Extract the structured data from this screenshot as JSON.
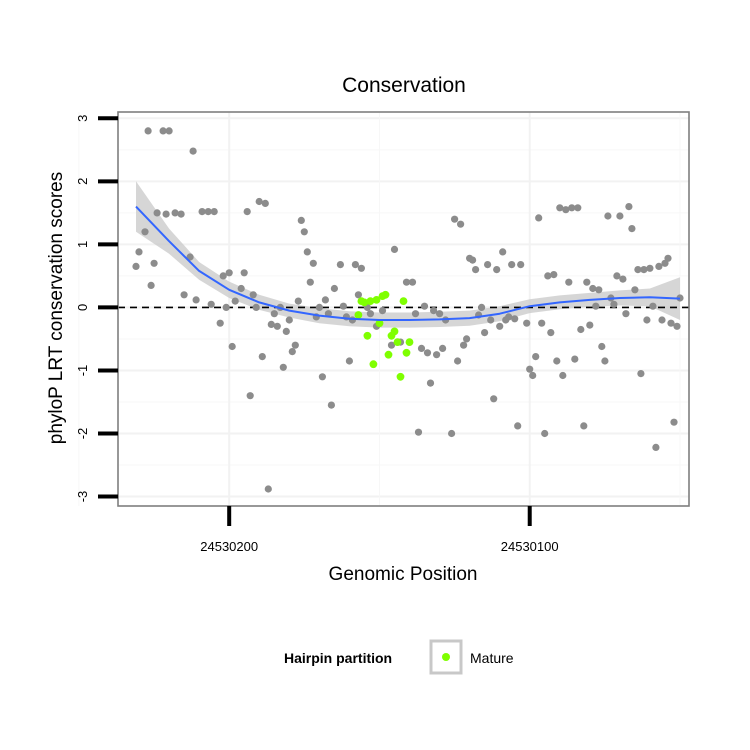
{
  "chart_data": {
    "type": "scatter",
    "title": "Conservation",
    "xlabel": "Genomic Position",
    "ylabel": "phyloP LRT conservation scores",
    "xlim": [
      24530237,
      24530047
    ],
    "ylim": [
      -3.15,
      3.1
    ],
    "x_reversed": true,
    "x_ticks": [
      24530200,
      24530100
    ],
    "x_tick_labels": [
      "24530200",
      "24530100"
    ],
    "y_ticks": [
      -3,
      -2,
      -1,
      0,
      1,
      2,
      3
    ],
    "y_tick_labels": [
      "-3",
      "-2",
      "-1",
      "0",
      "1",
      "2",
      "3"
    ],
    "grid": true,
    "reference_line": {
      "y": 0,
      "style": "dashed",
      "color": "#000000"
    },
    "legend": {
      "title": "Hairpin partition",
      "placement": "bottom",
      "entries": [
        {
          "label": "Mature",
          "color": "#7fff00"
        }
      ]
    },
    "colors": {
      "background_points": "#8c8c8c",
      "mature_points": "#7fff00",
      "smooth_line": "#3366ff",
      "confidence_band": "#c8c8c8"
    },
    "background_points": [
      [
        24530231,
        0.65
      ],
      [
        24530230,
        0.88
      ],
      [
        24530228,
        1.2
      ],
      [
        24530227,
        2.8
      ],
      [
        24530226,
        0.35
      ],
      [
        24530225,
        0.7
      ],
      [
        24530224,
        1.5
      ],
      [
        24530222,
        2.8
      ],
      [
        24530221,
        1.48
      ],
      [
        24530220,
        2.8
      ],
      [
        24530218,
        1.5
      ],
      [
        24530216,
        1.48
      ],
      [
        24530215,
        0.2
      ],
      [
        24530213,
        0.8
      ],
      [
        24530212,
        2.48
      ],
      [
        24530211,
        0.12
      ],
      [
        24530209,
        1.52
      ],
      [
        24530207,
        1.52
      ],
      [
        24530206,
        0.05
      ],
      [
        24530205,
        1.52
      ],
      [
        24530203,
        -0.25
      ],
      [
        24530202,
        0.5
      ],
      [
        24530201,
        0.0
      ],
      [
        24530200,
        0.55
      ],
      [
        24530199,
        -0.62
      ],
      [
        24530198,
        0.1
      ],
      [
        24530196,
        0.3
      ],
      [
        24530195,
        0.55
      ],
      [
        24530194,
        1.52
      ],
      [
        24530193,
        -1.4
      ],
      [
        24530192,
        0.2
      ],
      [
        24530191,
        0.0
      ],
      [
        24530190,
        1.68
      ],
      [
        24530189,
        -0.78
      ],
      [
        24530188,
        1.65
      ],
      [
        24530187,
        -2.88
      ],
      [
        24530186,
        -0.27
      ],
      [
        24530185,
        -0.1
      ],
      [
        24530184,
        -0.3
      ],
      [
        24530183,
        0.0
      ],
      [
        24530182,
        -0.95
      ],
      [
        24530181,
        -0.38
      ],
      [
        24530180,
        -0.2
      ],
      [
        24530179,
        -0.7
      ],
      [
        24530178,
        -0.6
      ],
      [
        24530177,
        0.1
      ],
      [
        24530176,
        1.38
      ],
      [
        24530175,
        1.2
      ],
      [
        24530174,
        0.88
      ],
      [
        24530173,
        0.4
      ],
      [
        24530172,
        0.7
      ],
      [
        24530171,
        -0.15
      ],
      [
        24530170,
        0.0
      ],
      [
        24530169,
        -1.1
      ],
      [
        24530168,
        0.12
      ],
      [
        24530167,
        -0.1
      ],
      [
        24530166,
        -1.55
      ],
      [
        24530165,
        0.3
      ],
      [
        24530163,
        0.68
      ],
      [
        24530162,
        0.02
      ],
      [
        24530161,
        -0.15
      ],
      [
        24530160,
        -0.85
      ],
      [
        24530159,
        -0.2
      ],
      [
        24530158,
        0.68
      ],
      [
        24530157,
        0.2
      ],
      [
        24530156,
        0.62
      ],
      [
        24530154,
        0.0
      ],
      [
        24530153,
        -0.1
      ],
      [
        24530151,
        -0.3
      ],
      [
        24530149,
        -0.05
      ],
      [
        24530146,
        -0.6
      ],
      [
        24530145,
        0.92
      ],
      [
        24530143,
        -0.55
      ],
      [
        24530141,
        0.4
      ],
      [
        24530139,
        0.4
      ],
      [
        24530138,
        -0.1
      ],
      [
        24530137,
        -1.98
      ],
      [
        24530136,
        -0.65
      ],
      [
        24530135,
        0.02
      ],
      [
        24530134,
        -0.72
      ],
      [
        24530133,
        -1.2
      ],
      [
        24530132,
        -0.05
      ],
      [
        24530131,
        -0.75
      ],
      [
        24530130,
        -0.1
      ],
      [
        24530129,
        -0.65
      ],
      [
        24530128,
        -0.2
      ],
      [
        24530126,
        -2.0
      ],
      [
        24530125,
        1.4
      ],
      [
        24530124,
        -0.85
      ],
      [
        24530123,
        1.32
      ],
      [
        24530122,
        -0.6
      ],
      [
        24530121,
        -0.5
      ],
      [
        24530120,
        0.78
      ],
      [
        24530119,
        0.75
      ],
      [
        24530118,
        0.6
      ],
      [
        24530117,
        -0.12
      ],
      [
        24530116,
        0.0
      ],
      [
        24530115,
        -0.4
      ],
      [
        24530114,
        0.68
      ],
      [
        24530113,
        -0.2
      ],
      [
        24530112,
        -1.45
      ],
      [
        24530111,
        0.6
      ],
      [
        24530110,
        -0.3
      ],
      [
        24530109,
        0.88
      ],
      [
        24530108,
        -0.2
      ],
      [
        24530107,
        -0.15
      ],
      [
        24530106,
        0.68
      ],
      [
        24530105,
        -0.18
      ],
      [
        24530104,
        -1.88
      ],
      [
        24530103,
        0.68
      ],
      [
        24530101,
        -0.25
      ],
      [
        24530100,
        -0.98
      ],
      [
        24530099,
        -1.08
      ],
      [
        24530098,
        -0.78
      ],
      [
        24530097,
        1.42
      ],
      [
        24530096,
        -0.25
      ],
      [
        24530095,
        -2.0
      ],
      [
        24530094,
        0.5
      ],
      [
        24530093,
        -0.4
      ],
      [
        24530092,
        0.52
      ],
      [
        24530091,
        -0.85
      ],
      [
        24530090,
        1.58
      ],
      [
        24530089,
        -1.08
      ],
      [
        24530088,
        1.55
      ],
      [
        24530087,
        0.4
      ],
      [
        24530086,
        1.58
      ],
      [
        24530085,
        -0.82
      ],
      [
        24530084,
        1.58
      ],
      [
        24530083,
        -0.35
      ],
      [
        24530082,
        -1.88
      ],
      [
        24530081,
        0.4
      ],
      [
        24530080,
        -0.28
      ],
      [
        24530079,
        0.3
      ],
      [
        24530078,
        0.02
      ],
      [
        24530077,
        0.28
      ],
      [
        24530076,
        -0.62
      ],
      [
        24530075,
        -0.85
      ],
      [
        24530074,
        1.45
      ],
      [
        24530073,
        0.15
      ],
      [
        24530072,
        0.05
      ],
      [
        24530071,
        0.5
      ],
      [
        24530070,
        1.45
      ],
      [
        24530069,
        0.45
      ],
      [
        24530068,
        -0.1
      ],
      [
        24530067,
        1.6
      ],
      [
        24530066,
        1.25
      ],
      [
        24530065,
        0.28
      ],
      [
        24530064,
        0.6
      ],
      [
        24530063,
        -1.05
      ],
      [
        24530062,
        0.6
      ],
      [
        24530061,
        -0.2
      ],
      [
        24530060,
        0.62
      ],
      [
        24530059,
        0.02
      ],
      [
        24530058,
        -2.22
      ],
      [
        24530057,
        0.65
      ],
      [
        24530056,
        -0.2
      ],
      [
        24530055,
        0.7
      ],
      [
        24530054,
        0.78
      ],
      [
        24530053,
        -0.25
      ],
      [
        24530052,
        -1.82
      ],
      [
        24530051,
        -0.3
      ],
      [
        24530050,
        0.15
      ]
    ],
    "mature_points": [
      [
        24530157,
        -0.12
      ],
      [
        24530156,
        0.1
      ],
      [
        24530155,
        0.08
      ],
      [
        24530154,
        -0.45
      ],
      [
        24530153,
        0.1
      ],
      [
        24530152,
        -0.9
      ],
      [
        24530151,
        0.12
      ],
      [
        24530150,
        -0.25
      ],
      [
        24530149,
        0.18
      ],
      [
        24530148,
        0.2
      ],
      [
        24530147,
        -0.75
      ],
      [
        24530146,
        -0.45
      ],
      [
        24530145,
        -0.38
      ],
      [
        24530144,
        -0.55
      ],
      [
        24530143,
        -1.1
      ],
      [
        24530142,
        0.1
      ],
      [
        24530141,
        -0.72
      ],
      [
        24530140,
        -0.55
      ]
    ],
    "smooth_line": [
      [
        24530231,
        1.6
      ],
      [
        24530220,
        1.05
      ],
      [
        24530210,
        0.58
      ],
      [
        24530200,
        0.28
      ],
      [
        24530190,
        0.08
      ],
      [
        24530180,
        -0.05
      ],
      [
        24530170,
        -0.13
      ],
      [
        24530160,
        -0.18
      ],
      [
        24530150,
        -0.2
      ],
      [
        24530140,
        -0.2
      ],
      [
        24530130,
        -0.19
      ],
      [
        24530120,
        -0.17
      ],
      [
        24530110,
        -0.1
      ],
      [
        24530100,
        0.02
      ],
      [
        24530090,
        0.08
      ],
      [
        24530080,
        0.12
      ],
      [
        24530070,
        0.15
      ],
      [
        24530060,
        0.16
      ],
      [
        24530050,
        0.14
      ]
    ],
    "confidence_band": [
      [
        24530231,
        1.2,
        2.0
      ],
      [
        24530220,
        0.85,
        1.25
      ],
      [
        24530210,
        0.44,
        0.72
      ],
      [
        24530200,
        0.15,
        0.41
      ],
      [
        24530190,
        -0.04,
        0.2
      ],
      [
        24530180,
        -0.16,
        0.06
      ],
      [
        24530170,
        -0.25,
        -0.01
      ],
      [
        24530160,
        -0.3,
        -0.06
      ],
      [
        24530150,
        -0.32,
        -0.08
      ],
      [
        24530140,
        -0.32,
        -0.08
      ],
      [
        24530130,
        -0.31,
        -0.07
      ],
      [
        24530120,
        -0.29,
        -0.05
      ],
      [
        24530110,
        -0.22,
        0.02
      ],
      [
        24530100,
        -0.09,
        0.13
      ],
      [
        24530090,
        -0.03,
        0.19
      ],
      [
        24530080,
        0.01,
        0.23
      ],
      [
        24530070,
        0.03,
        0.27
      ],
      [
        24530060,
        0.02,
        0.3
      ],
      [
        24530050,
        -0.2,
        0.48
      ]
    ]
  }
}
